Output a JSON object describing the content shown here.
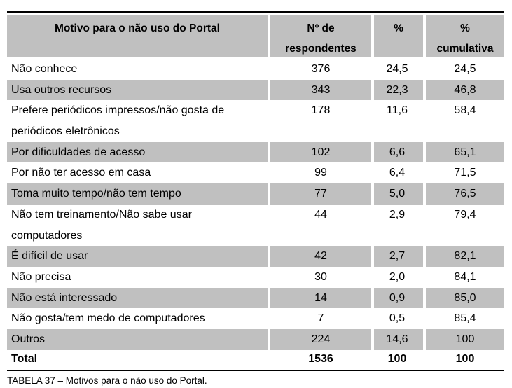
{
  "table": {
    "headers": [
      {
        "lines": [
          "Motivo para o não uso do Portal"
        ]
      },
      {
        "lines": [
          "Nº de",
          "respondentes"
        ]
      },
      {
        "lines": [
          "%"
        ]
      },
      {
        "lines": [
          "%",
          "cumulativa"
        ]
      }
    ],
    "rows": [
      {
        "motivo": [
          "Não conhece"
        ],
        "n": "376",
        "pct": "24,5",
        "cum": "24,5",
        "shaded": false
      },
      {
        "motivo": [
          "Usa outros recursos"
        ],
        "n": "343",
        "pct": "22,3",
        "cum": "46,8",
        "shaded": true
      },
      {
        "motivo": [
          "Prefere periódicos impressos/não gosta de",
          "periódicos eletrônicos"
        ],
        "n": "178",
        "pct": "11,6",
        "cum": "58,4",
        "shaded": false
      },
      {
        "motivo": [
          "Por dificuldades de acesso"
        ],
        "n": "102",
        "pct": "6,6",
        "cum": "65,1",
        "shaded": true
      },
      {
        "motivo": [
          "Por não ter acesso em casa"
        ],
        "n": "99",
        "pct": "6,4",
        "cum": "71,5",
        "shaded": false
      },
      {
        "motivo": [
          "Toma muito tempo/não tem tempo"
        ],
        "n": "77",
        "pct": "5,0",
        "cum": "76,5",
        "shaded": true
      },
      {
        "motivo": [
          "Não tem treinamento/Não sabe usar",
          "computadores"
        ],
        "n": "44",
        "pct": "2,9",
        "cum": "79,4",
        "shaded": false
      },
      {
        "motivo": [
          "É difícil de usar"
        ],
        "n": "42",
        "pct": "2,7",
        "cum": "82,1",
        "shaded": true
      },
      {
        "motivo": [
          "Não precisa"
        ],
        "n": "30",
        "pct": "2,0",
        "cum": "84,1",
        "shaded": false
      },
      {
        "motivo": [
          "Não está interessado"
        ],
        "n": "14",
        "pct": "0,9",
        "cum": "85,0",
        "shaded": true
      },
      {
        "motivo": [
          "Não gosta/tem medo de computadores"
        ],
        "n": "7",
        "pct": "0,5",
        "cum": "85,4",
        "shaded": false
      },
      {
        "motivo": [
          "Outros"
        ],
        "n": "224",
        "pct": "14,6",
        "cum": "100",
        "shaded": true
      }
    ],
    "total": {
      "label": "Total",
      "n": "1536",
      "pct": "100",
      "cum": "100"
    }
  },
  "caption": "TABELA 37 – Motivos para o não uso do Portal."
}
